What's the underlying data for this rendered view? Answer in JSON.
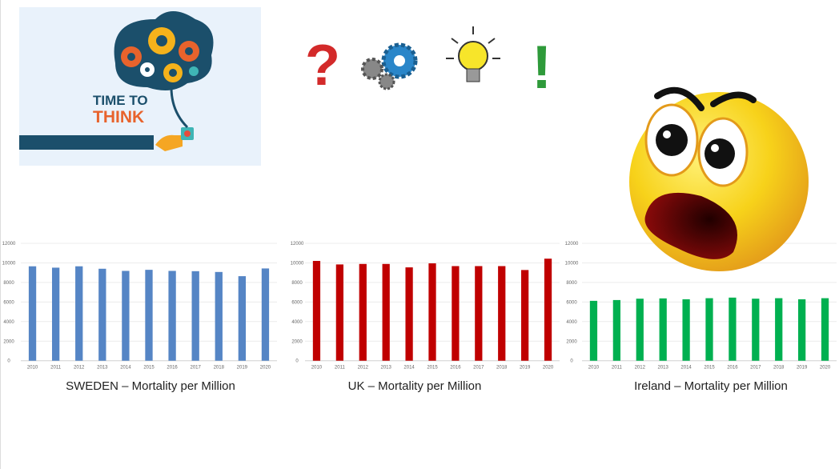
{
  "illustration": {
    "line1": "TIME TO",
    "line2": "THINK"
  },
  "symbols": [
    "question-mark-icon",
    "gears-icon",
    "lightbulb-icon",
    "exclamation-mark-icon"
  ],
  "emoji": "shocked-face-icon",
  "chart_data": [
    {
      "type": "bar",
      "title": "SWEDEN – Mortality per Million",
      "xlabel": "",
      "ylabel": "",
      "ylim": [
        0,
        12000
      ],
      "yticks": [
        "0",
        "2000",
        "4000",
        "6000",
        "8000",
        "10000",
        "12000"
      ],
      "grid": true,
      "color": "#5585c5",
      "categories": [
        "2010",
        "2011",
        "2012",
        "2013",
        "2014",
        "2015",
        "2016",
        "2017",
        "2018",
        "2019",
        "2020"
      ],
      "values": [
        9650,
        9510,
        9650,
        9400,
        9180,
        9290,
        9180,
        9150,
        9070,
        8640,
        9430
      ]
    },
    {
      "type": "bar",
      "title": "UK – Mortality per Million",
      "xlabel": "",
      "ylabel": "",
      "ylim": [
        0,
        12000
      ],
      "yticks": [
        "0",
        "2000",
        "4000",
        "6000",
        "8000",
        "10000",
        "12000"
      ],
      "grid": true,
      "color": "#c00000",
      "categories": [
        "2010",
        "2011",
        "2012",
        "2013",
        "2014",
        "2015",
        "2016",
        "2017",
        "2018",
        "2019",
        "2020"
      ],
      "values": [
        10200,
        9840,
        9890,
        9890,
        9540,
        9950,
        9670,
        9670,
        9670,
        9270,
        10430
      ]
    },
    {
      "type": "bar",
      "title": "Ireland – Mortality per Million",
      "xlabel": "",
      "ylabel": "",
      "ylim": [
        0,
        12000
      ],
      "yticks": [
        "0",
        "2000",
        "4000",
        "6000",
        "8000",
        "10000",
        "12000"
      ],
      "grid": true,
      "color": "#00b050",
      "categories": [
        "2010",
        "2011",
        "2012",
        "2013",
        "2014",
        "2015",
        "2016",
        "2017",
        "2018",
        "2019",
        "2020"
      ],
      "values": [
        6120,
        6200,
        6340,
        6370,
        6280,
        6390,
        6450,
        6340,
        6390,
        6280,
        6390
      ]
    }
  ]
}
